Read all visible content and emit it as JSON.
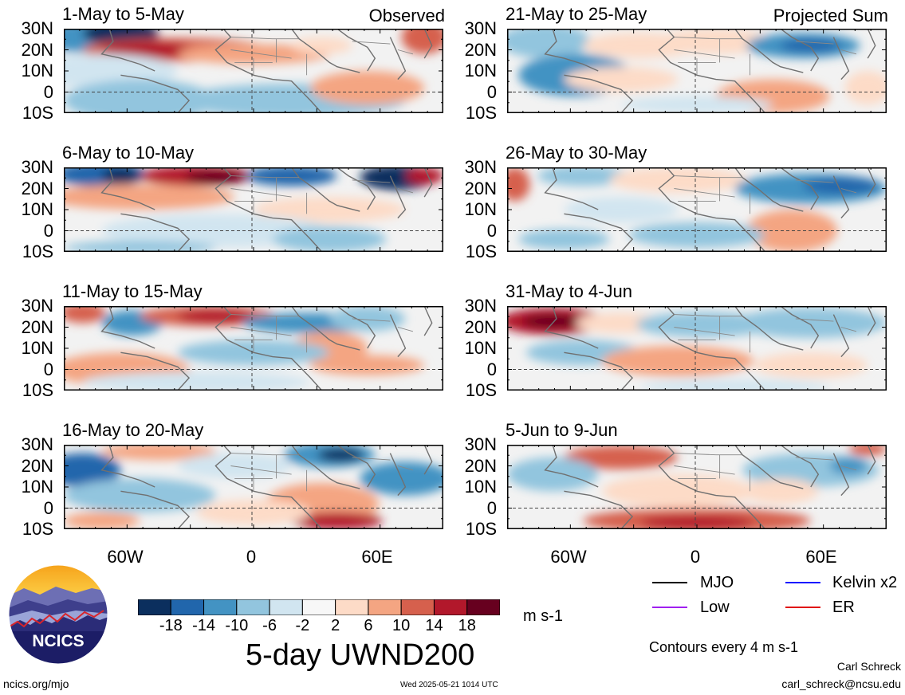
{
  "panels_left": [
    {
      "title": "1-May to 5-May",
      "tag": "Observed"
    },
    {
      "title": "6-May to 10-May",
      "tag": ""
    },
    {
      "title": "11-May to 15-May",
      "tag": ""
    },
    {
      "title": "16-May to 20-May",
      "tag": ""
    }
  ],
  "panels_right": [
    {
      "title": "21-May to 25-May",
      "tag": "Projected Sum"
    },
    {
      "title": "26-May to 30-May",
      "tag": ""
    },
    {
      "title": "31-May to 4-Jun",
      "tag": ""
    },
    {
      "title": "5-Jun to 9-Jun",
      "tag": ""
    }
  ],
  "lat_labels": [
    "30N",
    "20N",
    "10N",
    "0",
    "10S"
  ],
  "lon_labels": [
    "60W",
    "0",
    "60E"
  ],
  "colorbar": {
    "ticks": [
      "-18",
      "-14",
      "-10",
      "-6",
      "-2",
      "2",
      "6",
      "10",
      "14",
      "18"
    ],
    "colors": [
      "#0b2f5e",
      "#2166ac",
      "#4393c3",
      "#92c5de",
      "#d1e5f0",
      "#f7f7f7",
      "#fddbc7",
      "#f4a582",
      "#d6604d",
      "#b2182b",
      "#67001f"
    ],
    "unit": "m s-1"
  },
  "main_title": "5-day UWND200",
  "legend": {
    "mjo": {
      "label": "MJO",
      "color": "#000000"
    },
    "kelvin": {
      "label": "Kelvin x2",
      "color": "#1a1aff"
    },
    "low": {
      "label": "Low",
      "color": "#a020f0"
    },
    "er": {
      "label": "ER",
      "color": "#e01010"
    }
  },
  "contours_note": "Contours every 4 m s-1",
  "author": "Carl Schreck",
  "email": "carl_schreck@ncsu.edu",
  "site": "ncics.org/mjo",
  "timestamp": "Wed 2025-05-21 1014 UTC",
  "logo_text": "NCICS"
}
